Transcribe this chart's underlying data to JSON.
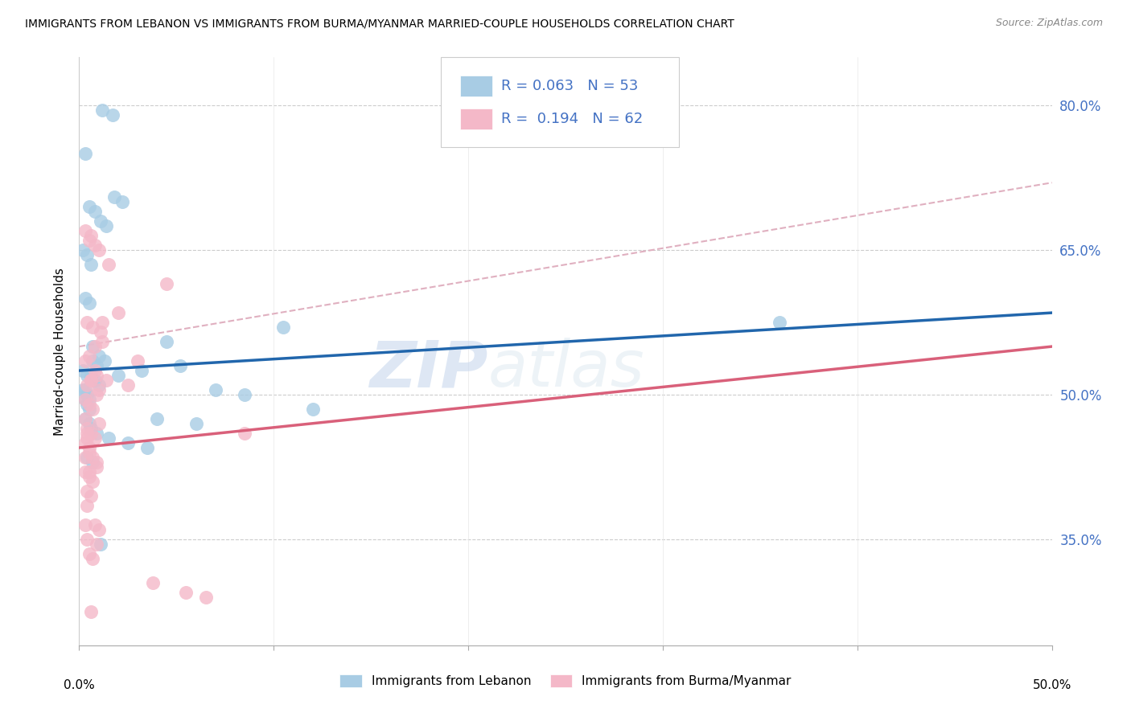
{
  "title": "IMMIGRANTS FROM LEBANON VS IMMIGRANTS FROM BURMA/MYANMAR MARRIED-COUPLE HOUSEHOLDS CORRELATION CHART",
  "source": "Source: ZipAtlas.com",
  "ylabel": "Married-couple Households",
  "y_ticks": [
    35.0,
    50.0,
    65.0,
    80.0
  ],
  "xlim": [
    0.0,
    50.0
  ],
  "ylim": [
    24.0,
    85.0
  ],
  "legend_label1": "Immigrants from Lebanon",
  "legend_label2": "Immigrants from Burma/Myanmar",
  "R1": 0.063,
  "N1": 53,
  "R2": 0.194,
  "N2": 62,
  "blue_color": "#a8cce4",
  "pink_color": "#f4b8c8",
  "blue_line_color": "#2166ac",
  "pink_line_color": "#d9607a",
  "dashed_line_color": "#e0b0c0",
  "blue_line_y0": 52.5,
  "blue_line_y1": 58.5,
  "pink_line_y0": 44.5,
  "pink_line_y1": 55.0,
  "dash_line_y0": 55.0,
  "dash_line_y1": 72.0,
  "blue_x": [
    1.2,
    1.7,
    0.3,
    1.8,
    2.2,
    0.5,
    0.8,
    1.1,
    1.4,
    0.2,
    0.4,
    0.6,
    0.3,
    0.5,
    0.7,
    1.0,
    1.3,
    0.2,
    0.4,
    0.6,
    0.8,
    1.0,
    0.2,
    0.3,
    0.4,
    0.5,
    0.3,
    0.4,
    0.5,
    0.7,
    0.9,
    3.2,
    4.5,
    7.0,
    8.5,
    10.5,
    0.3,
    0.5,
    0.6,
    0.9,
    1.5,
    2.5,
    3.5,
    4.0,
    6.0,
    0.4,
    0.7,
    1.1,
    36.0,
    5.2,
    12.0,
    2.0,
    0.6
  ],
  "blue_y": [
    79.5,
    79.0,
    75.0,
    70.5,
    70.0,
    69.5,
    69.0,
    68.0,
    67.5,
    65.0,
    64.5,
    63.5,
    60.0,
    59.5,
    55.0,
    54.0,
    53.5,
    52.5,
    52.0,
    52.0,
    51.5,
    51.0,
    50.5,
    50.5,
    50.0,
    49.5,
    49.5,
    49.0,
    48.5,
    53.5,
    53.0,
    52.5,
    55.5,
    50.5,
    50.0,
    57.0,
    47.5,
    47.0,
    46.5,
    46.0,
    45.5,
    45.0,
    44.5,
    47.5,
    47.0,
    43.5,
    43.0,
    34.5,
    57.5,
    53.0,
    48.5,
    52.0,
    51.5
  ],
  "pink_x": [
    0.3,
    0.5,
    0.8,
    1.0,
    1.5,
    0.4,
    0.7,
    1.2,
    2.0,
    0.3,
    0.5,
    0.8,
    1.1,
    1.4,
    0.4,
    0.6,
    0.9,
    1.2,
    0.3,
    0.5,
    0.7,
    0.9,
    0.4,
    0.6,
    0.8,
    1.0,
    0.3,
    0.5,
    0.7,
    0.9,
    0.3,
    0.5,
    0.7,
    0.9,
    0.4,
    0.6,
    0.8,
    1.0,
    0.3,
    0.5,
    0.7,
    0.9,
    0.4,
    0.6,
    0.8,
    1.0,
    2.5,
    3.0,
    3.8,
    5.5,
    6.5,
    0.4,
    0.6,
    4.5,
    8.5,
    0.3,
    0.4,
    0.5,
    0.3,
    0.5,
    0.4,
    0.6
  ],
  "pink_y": [
    67.0,
    66.0,
    65.5,
    65.0,
    63.5,
    57.5,
    57.0,
    57.5,
    58.5,
    53.5,
    54.0,
    55.0,
    56.5,
    51.5,
    51.0,
    51.5,
    52.0,
    55.5,
    49.5,
    49.0,
    48.5,
    50.0,
    46.5,
    46.0,
    45.5,
    47.0,
    45.0,
    44.5,
    43.5,
    43.0,
    42.0,
    41.5,
    41.0,
    42.5,
    40.0,
    39.5,
    36.5,
    36.0,
    36.5,
    33.5,
    33.0,
    34.5,
    35.0,
    51.5,
    52.5,
    50.5,
    51.0,
    53.5,
    30.5,
    29.5,
    29.0,
    46.0,
    66.5,
    61.5,
    46.0,
    47.5,
    45.5,
    44.0,
    43.5,
    42.0,
    38.5,
    27.5
  ]
}
